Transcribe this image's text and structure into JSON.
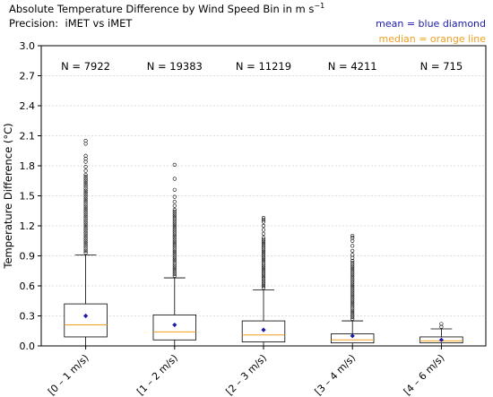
{
  "title_main": "Absolute Temperature Difference by Wind Speed Bin in m s",
  "title_sup": "−1",
  "subtitle": "Precision:  iMET vs iMET",
  "legend": {
    "mean_label": "mean = blue diamond",
    "mean_color": "#1a1aa6",
    "median_label": "median = orange line",
    "median_color": "#f0a020"
  },
  "chart_data": {
    "type": "box",
    "ylabel": "Temperature Difference (°C)",
    "ylim": [
      0.0,
      3.0
    ],
    "yticks": [
      "0.0",
      "0.3",
      "0.6",
      "0.9",
      "1.2",
      "1.5",
      "1.8",
      "2.1",
      "2.4",
      "2.7",
      "3.0"
    ],
    "grid": true,
    "categories": [
      "[0 – 1 m/s)",
      "[1 – 2 m/s)",
      "[2 – 3 m/s)",
      "[3 – 4 m/s)",
      "[4 – 6 m/s)"
    ],
    "counts": [
      "N = 7922",
      "N = 19383",
      "N = 11219",
      "N = 4211",
      "N = 715"
    ],
    "boxes": [
      {
        "whisker_low": 0.0,
        "q1": 0.09,
        "median": 0.21,
        "q3": 0.42,
        "whisker_high": 0.91,
        "mean": 0.3,
        "outliers": [
          0.93,
          0.95,
          0.97,
          0.99,
          1.01,
          1.03,
          1.05,
          1.07,
          1.09,
          1.11,
          1.13,
          1.15,
          1.17,
          1.19,
          1.21,
          1.23,
          1.25,
          1.27,
          1.29,
          1.31,
          1.33,
          1.35,
          1.37,
          1.39,
          1.41,
          1.43,
          1.45,
          1.47,
          1.49,
          1.51,
          1.53,
          1.55,
          1.57,
          1.59,
          1.61,
          1.63,
          1.65,
          1.67,
          1.69,
          1.71,
          1.75,
          1.79,
          1.84,
          1.87,
          1.9,
          2.02,
          2.05
        ]
      },
      {
        "whisker_low": 0.0,
        "q1": 0.06,
        "median": 0.14,
        "q3": 0.31,
        "whisker_high": 0.68,
        "mean": 0.21,
        "outliers": [
          0.7,
          0.72,
          0.74,
          0.76,
          0.78,
          0.8,
          0.82,
          0.84,
          0.86,
          0.88,
          0.9,
          0.92,
          0.94,
          0.96,
          0.98,
          1.0,
          1.02,
          1.04,
          1.06,
          1.08,
          1.1,
          1.12,
          1.14,
          1.16,
          1.18,
          1.2,
          1.22,
          1.24,
          1.26,
          1.28,
          1.3,
          1.32,
          1.34,
          1.36,
          1.4,
          1.44,
          1.49,
          1.56,
          1.67,
          1.81
        ]
      },
      {
        "whisker_low": 0.0,
        "q1": 0.04,
        "median": 0.11,
        "q3": 0.25,
        "whisker_high": 0.56,
        "mean": 0.16,
        "outliers": [
          0.58,
          0.6,
          0.62,
          0.64,
          0.66,
          0.68,
          0.7,
          0.72,
          0.74,
          0.76,
          0.78,
          0.8,
          0.82,
          0.84,
          0.86,
          0.88,
          0.9,
          0.92,
          0.94,
          0.96,
          0.98,
          1.0,
          1.02,
          1.04,
          1.06,
          1.08,
          1.12,
          1.16,
          1.2,
          1.24,
          1.26,
          1.28
        ]
      },
      {
        "whisker_low": 0.0,
        "q1": 0.03,
        "median": 0.06,
        "q3": 0.12,
        "whisker_high": 0.25,
        "mean": 0.1,
        "outliers": [
          0.27,
          0.29,
          0.31,
          0.33,
          0.35,
          0.37,
          0.39,
          0.41,
          0.43,
          0.45,
          0.47,
          0.49,
          0.51,
          0.53,
          0.55,
          0.57,
          0.59,
          0.61,
          0.63,
          0.65,
          0.67,
          0.69,
          0.71,
          0.73,
          0.75,
          0.77,
          0.79,
          0.81,
          0.83,
          0.85,
          0.88,
          0.91,
          0.95,
          1.0,
          1.05,
          1.08,
          1.1
        ]
      },
      {
        "whisker_low": 0.0,
        "q1": 0.03,
        "median": 0.05,
        "q3": 0.09,
        "whisker_high": 0.17,
        "mean": 0.06,
        "outliers": [
          0.19,
          0.22
        ]
      }
    ],
    "box_color": "#000000",
    "median_color": "#f0a020",
    "mean_color": "#1a1aa6",
    "grid_color": "#dcdcdc"
  }
}
